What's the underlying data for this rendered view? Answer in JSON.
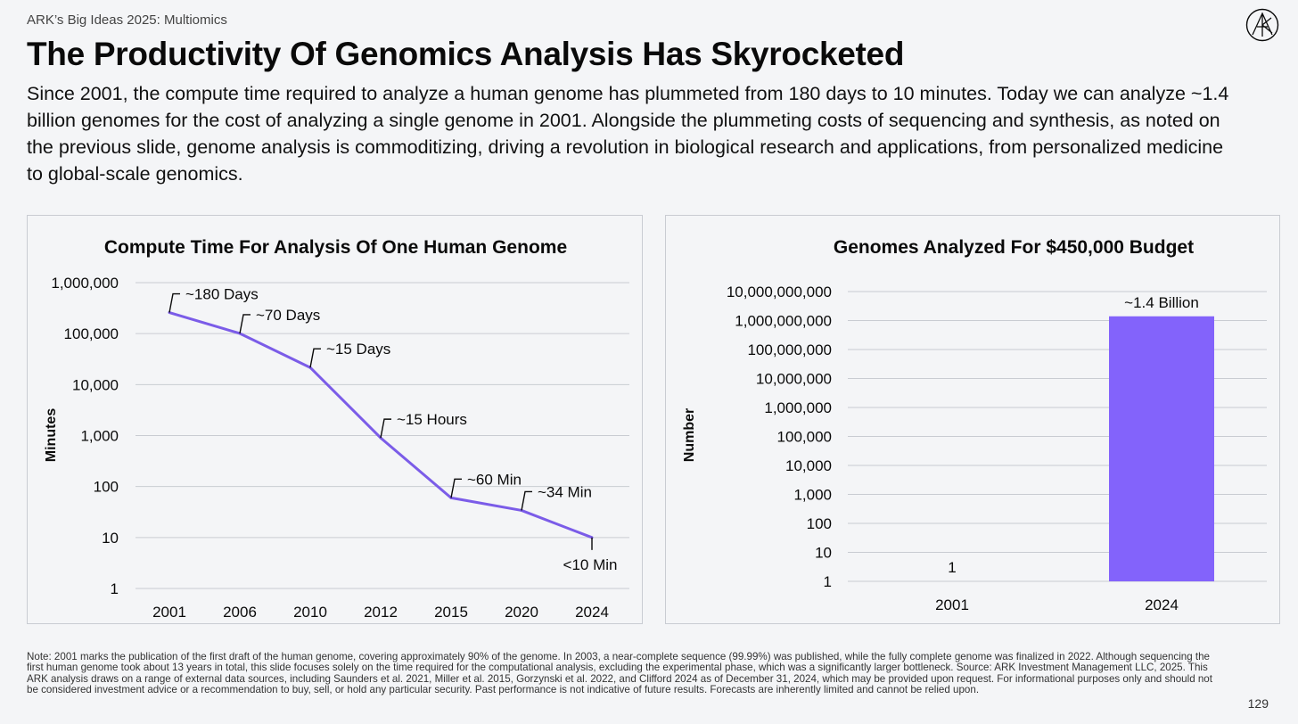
{
  "header": {
    "kicker": "ARK’s Big Ideas 2025: Multiomics",
    "title": "The Productivity Of Genomics Analysis Has Skyrocketed",
    "description": "Since 2001, the compute time required to analyze a human genome has plummeted from 180 days to 10 minutes. Today we can analyze ~1.4 billion genomes for the cost of analyzing a single genome in 2001. Alongside the plummeting costs of sequencing and synthesis, as noted on the previous slide, genome analysis is commoditizing, driving a revolution in biological research and applications, from personalized medicine to global-scale genomics."
  },
  "logo": {
    "icon": "ark-logo-icon"
  },
  "colors": {
    "line": "#7b5ce8",
    "bar": "#8363fb",
    "grid": "#c9ccd2",
    "text": "#0a0a0a"
  },
  "chart_data": [
    {
      "type": "line",
      "scale": "log",
      "title": "Compute Time For Analysis Of One Human Genome",
      "xlabel": "",
      "ylabel": "Minutes",
      "categories": [
        "2001",
        "2006",
        "2010",
        "2012",
        "2015",
        "2020",
        "2024"
      ],
      "values": [
        259200,
        100800,
        21600,
        900,
        60,
        34,
        10
      ],
      "annotations": [
        "~180 Days",
        "~70 Days",
        "~15 Days",
        "~15 Hours",
        "~60 Min",
        "~34 Min",
        "<10 Min"
      ],
      "yticks": [
        "1,000,000",
        "100,000",
        "10,000",
        "1,000",
        "100",
        "10",
        "1"
      ],
      "ytick_values": [
        1000000,
        100000,
        10000,
        1000,
        100,
        10,
        1
      ],
      "ylim": [
        1,
        1000000
      ]
    },
    {
      "type": "bar",
      "scale": "log",
      "title": "Genomes Analyzed For $450,000 Budget",
      "xlabel": "",
      "ylabel": "Number",
      "categories": [
        "2001",
        "2024"
      ],
      "values": [
        1,
        1400000000
      ],
      "data_labels": [
        "1",
        "~1.4 Billion"
      ],
      "yticks": [
        "10,000,000,000",
        "1,000,000,000",
        "100,000,000",
        "10,000,000",
        "1,000,000",
        "100,000",
        "10,000",
        "1,000",
        "100",
        "10",
        "1"
      ],
      "ytick_values": [
        10000000000,
        1000000000,
        100000000,
        10000000,
        1000000,
        100000,
        10000,
        1000,
        100,
        10,
        1
      ],
      "ylim": [
        1,
        10000000000
      ]
    }
  ],
  "footer": {
    "note": "Note: 2001 marks the publication of the first draft of the human genome, covering approximately 90% of the genome. In 2003, a near-complete sequence (99.99%) was published, while the fully complete genome was finalized in 2022. Although sequencing the first human genome took about 13 years in total, this slide focuses solely on the time required for the computational analysis, excluding the experimental phase, which was a significantly larger bottleneck. Source: ARK Investment Management LLC, 2025. This ARK analysis draws on a range of external data sources, including Saunders et al. 2021, Miller et al. 2015, Gorzynski et al. 2022, and Clifford 2024 as of December 31, 2024, which may be provided upon request. For informational purposes only and should not be considered investment advice or a recommendation to buy, sell, or hold any particular security. Past performance is not indicative of future results. Forecasts are inherently limited and cannot be relied upon.",
    "page_number": "129"
  }
}
